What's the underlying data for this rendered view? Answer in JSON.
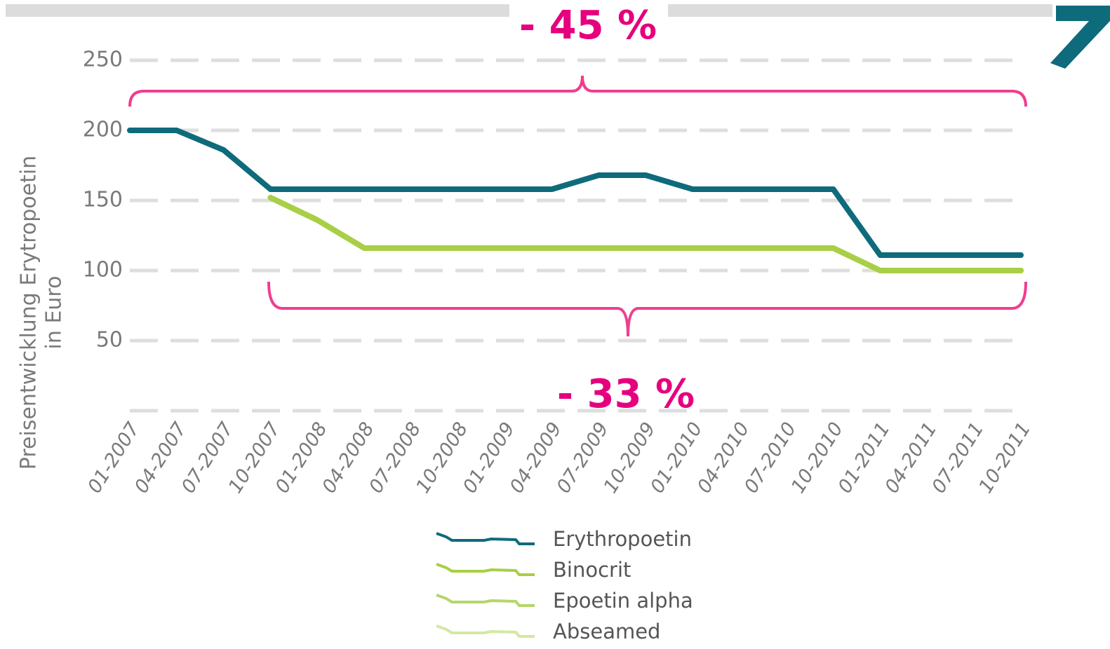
{
  "chart_data": {
    "type": "line",
    "ylabel": [
      "Preisentwicklung Erytropoetin",
      "in Euro"
    ],
    "annotations": [
      "- 45 %",
      "- 33 %"
    ],
    "categories": [
      "01-2007",
      "04-2007",
      "07-2007",
      "10-2007",
      "01-2008",
      "04-2008",
      "07-2008",
      "10-2008",
      "01-2009",
      "04-2009",
      "07-2009",
      "10-2009",
      "01-2010",
      "04-2010",
      "07-2010",
      "10-2010",
      "01-2011",
      "04-2011",
      "07-2011",
      "10-2011"
    ],
    "series": [
      {
        "name": "Erythropoetin",
        "color": "#0e6b7b",
        "values": [
          200,
          200,
          186,
          158,
          158,
          158,
          158,
          158,
          158,
          158,
          168,
          168,
          158,
          158,
          158,
          158,
          111,
          111,
          111,
          111
        ]
      },
      {
        "name": "Binocrit",
        "color": "#a8cf45",
        "values": [
          null,
          null,
          null,
          152,
          136,
          116,
          116,
          116,
          116,
          116,
          116,
          116,
          116,
          116,
          116,
          116,
          100,
          100,
          100,
          100
        ]
      },
      {
        "name": "Epoetin alpha",
        "color": "#b5d66a",
        "values": [
          null,
          null,
          null,
          152,
          136,
          116,
          116,
          116,
          116,
          116,
          116,
          116,
          116,
          116,
          116,
          116,
          100,
          100,
          100,
          100
        ]
      },
      {
        "name": "Abseamed",
        "color": "#d4e8a0",
        "values": [
          null,
          null,
          null,
          152,
          136,
          116,
          116,
          116,
          116,
          116,
          116,
          116,
          116,
          116,
          116,
          116,
          100,
          100,
          100,
          100
        ]
      }
    ],
    "ylim": [
      0,
      250
    ],
    "yticks": [
      50,
      100,
      150,
      200,
      250
    ],
    "grid": true
  }
}
